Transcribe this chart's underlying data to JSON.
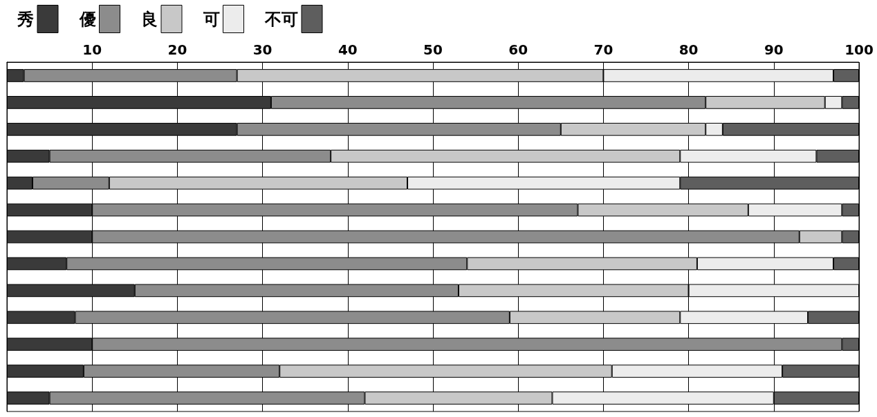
{
  "chart_data": {
    "type": "bar",
    "orientation": "horizontal",
    "stacked": true,
    "categories": [
      null,
      null,
      null,
      null,
      null,
      null,
      null,
      null,
      null,
      null,
      null,
      null,
      null
    ],
    "series": [
      {
        "name": "秀",
        "color": "#3a3a3a",
        "values": [
          2,
          31,
          27,
          5,
          3,
          10,
          10,
          7,
          15,
          8,
          10,
          9,
          5
        ]
      },
      {
        "name": "優",
        "color": "#8c8c8c",
        "values": [
          25,
          51,
          38,
          33,
          9,
          57,
          83,
          47,
          38,
          51,
          88,
          23,
          37
        ]
      },
      {
        "name": "良",
        "color": "#c8c8c8",
        "values": [
          43,
          14,
          17,
          41,
          35,
          20,
          5,
          27,
          27,
          20,
          0,
          39,
          22
        ]
      },
      {
        "name": "可",
        "color": "#ececec",
        "values": [
          27,
          2,
          2,
          16,
          32,
          11,
          0,
          16,
          20,
          15,
          0,
          20,
          26
        ]
      },
      {
        "name": "不可",
        "color": "#5e5e5e",
        "values": [
          3,
          2,
          16,
          5,
          21,
          2,
          2,
          3,
          0,
          6,
          2,
          9,
          10
        ]
      }
    ],
    "xlim": [
      0,
      100
    ],
    "xticks": [
      10,
      20,
      30,
      40,
      50,
      60,
      70,
      80,
      90,
      100
    ],
    "grid": "x",
    "legend": "top left",
    "tick_labels": "x"
  }
}
